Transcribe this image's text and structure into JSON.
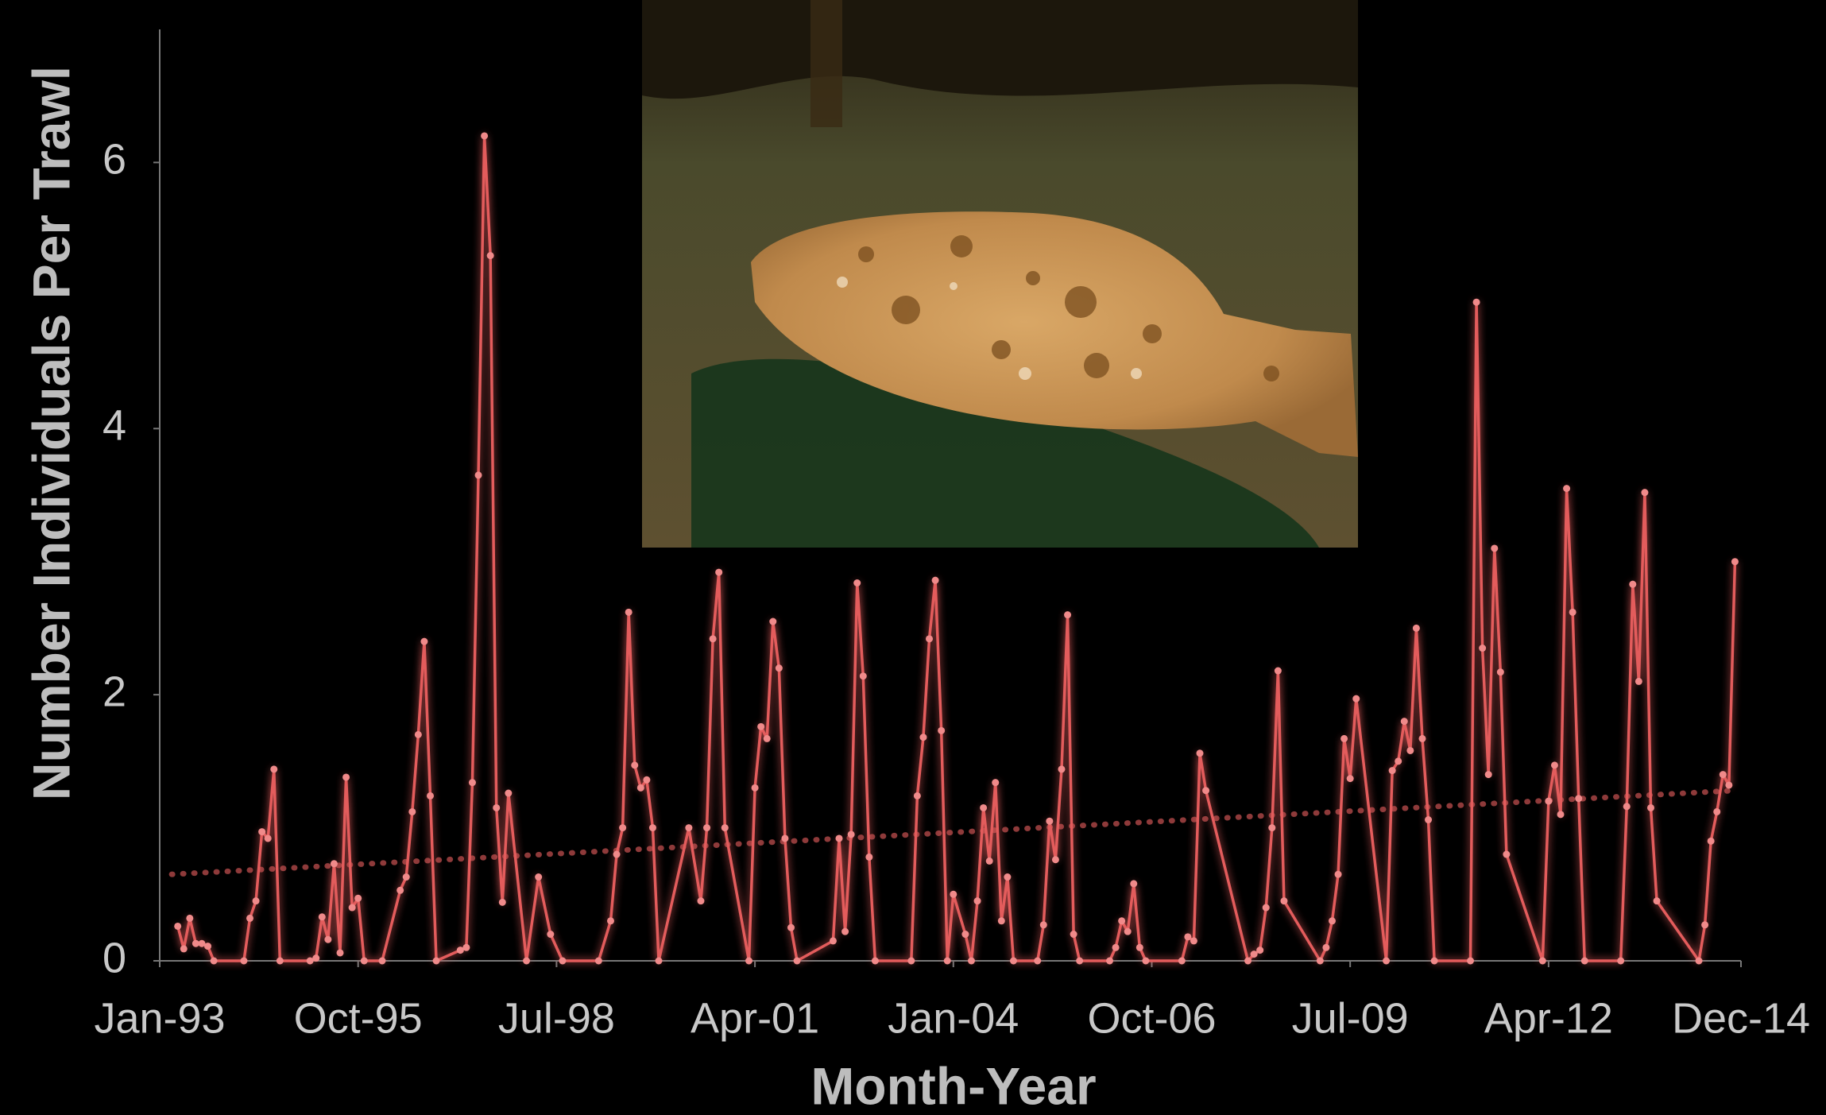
{
  "chart_data": {
    "type": "line",
    "x_label": "Month-Year",
    "y_label": "Number Individuals Per Trawl",
    "xlim": [
      "1993-01",
      "2014-12"
    ],
    "xticks": [
      {
        "value": "1993-01",
        "label": "Jan-93"
      },
      {
        "value": "1995-10",
        "label": "Oct-95"
      },
      {
        "value": "1998-07",
        "label": "Jul-98"
      },
      {
        "value": "2001-04",
        "label": "Apr-01"
      },
      {
        "value": "2004-01",
        "label": "Jan-04"
      },
      {
        "value": "2006-10",
        "label": "Oct-06"
      },
      {
        "value": "2009-07",
        "label": "Jul-09"
      },
      {
        "value": "2012-04",
        "label": "Apr-12"
      },
      {
        "value": "2014-12",
        "label": "Dec-14"
      }
    ],
    "ylim": [
      0,
      7
    ],
    "yticks": [
      0,
      2,
      4,
      6
    ],
    "color": "#e35b5b",
    "x": [
      "1993-04",
      "1993-05",
      "1993-06",
      "1993-07",
      "1993-08",
      "1993-09",
      "1993-10",
      "1994-03",
      "1994-04",
      "1994-05",
      "1994-06",
      "1994-07",
      "1994-08",
      "1994-09",
      "1995-02",
      "1995-03",
      "1995-04",
      "1995-05",
      "1995-06",
      "1995-07",
      "1995-08",
      "1995-09",
      "1995-10",
      "1995-11",
      "1996-02",
      "1996-05",
      "1996-06",
      "1996-07",
      "1996-08",
      "1996-09",
      "1996-10",
      "1996-11",
      "1997-03",
      "1997-04",
      "1997-05",
      "1997-06",
      "1997-07",
      "1997-08",
      "1997-09",
      "1997-10",
      "1997-11",
      "1998-02",
      "1998-04",
      "1998-06",
      "1998-08",
      "1999-02",
      "1999-04",
      "1999-05",
      "1999-06",
      "1999-07",
      "1999-08",
      "1999-09",
      "1999-10",
      "1999-11",
      "1999-12",
      "2000-05",
      "2000-07",
      "2000-08",
      "2000-09",
      "2000-10",
      "2000-11",
      "2001-03",
      "2001-04",
      "2001-05",
      "2001-06",
      "2001-07",
      "2001-08",
      "2001-09",
      "2001-10",
      "2001-11",
      "2002-05",
      "2002-06",
      "2002-07",
      "2002-08",
      "2002-09",
      "2002-10",
      "2002-11",
      "2002-12",
      "2003-06",
      "2003-07",
      "2003-08",
      "2003-09",
      "2003-10",
      "2003-11",
      "2003-12",
      "2004-01",
      "2004-03",
      "2004-04",
      "2004-05",
      "2004-06",
      "2004-07",
      "2004-08",
      "2004-09",
      "2004-10",
      "2004-11",
      "2005-03",
      "2005-04",
      "2005-05",
      "2005-06",
      "2005-07",
      "2005-08",
      "2005-09",
      "2005-10",
      "2006-03",
      "2006-04",
      "2006-05",
      "2006-06",
      "2006-07",
      "2006-08",
      "2006-09",
      "2007-03",
      "2007-04",
      "2007-05",
      "2007-06",
      "2007-07",
      "2008-02",
      "2008-03",
      "2008-04",
      "2008-05",
      "2008-06",
      "2008-07",
      "2008-08",
      "2009-02",
      "2009-03",
      "2009-04",
      "2009-05",
      "2009-06",
      "2009-07",
      "2009-08",
      "2010-01",
      "2010-02",
      "2010-03",
      "2010-04",
      "2010-05",
      "2010-06",
      "2010-07",
      "2010-08",
      "2010-09",
      "2011-03",
      "2011-04",
      "2011-05",
      "2011-06",
      "2011-07",
      "2011-08",
      "2011-09",
      "2012-03",
      "2012-04",
      "2012-05",
      "2012-06",
      "2012-07",
      "2012-08",
      "2012-09",
      "2012-10",
      "2013-04",
      "2013-05",
      "2013-06",
      "2013-07",
      "2013-08",
      "2013-09",
      "2013-10",
      "2014-05",
      "2014-06",
      "2014-07",
      "2014-08",
      "2014-09",
      "2014-10",
      "2014-11"
    ],
    "values": [
      0.26,
      0.09,
      0.32,
      0.13,
      0.13,
      0.11,
      0,
      0,
      0.32,
      0.45,
      0.97,
      0.92,
      1.44,
      0,
      0,
      0.02,
      0.33,
      0.16,
      0.73,
      0.06,
      1.38,
      0.4,
      0.47,
      0,
      0,
      0.53,
      0.63,
      1.12,
      1.7,
      2.4,
      1.24,
      0,
      0.08,
      0.1,
      1.34,
      3.65,
      6.2,
      5.3,
      1.15,
      0.44,
      1.26,
      0,
      0.63,
      0.2,
      0,
      0,
      0.3,
      0.8,
      1.0,
      2.62,
      1.47,
      1.3,
      1.36,
      1.0,
      0,
      1.0,
      0.45,
      1.0,
      2.42,
      2.92,
      1.0,
      0,
      1.3,
      1.76,
      1.67,
      2.55,
      2.2,
      0.92,
      0.25,
      0,
      0.15,
      0.92,
      0.22,
      0.95,
      2.84,
      2.14,
      0.78,
      0,
      0,
      1.24,
      1.68,
      2.42,
      2.86,
      1.73,
      0,
      0.5,
      0.2,
      0,
      0.45,
      1.15,
      0.75,
      1.34,
      0.3,
      0.63,
      0,
      0,
      0.27,
      1.05,
      0.76,
      1.44,
      2.6,
      0.2,
      0,
      0,
      0.1,
      0.3,
      0.22,
      0.58,
      0.1,
      0,
      0,
      0.18,
      0.15,
      1.56,
      1.28,
      0,
      0.05,
      0.08,
      0.4,
      1.0,
      2.18,
      0.45,
      0,
      0.1,
      0.3,
      0.65,
      1.67,
      1.37,
      1.97,
      0,
      1.43,
      1.5,
      1.8,
      1.58,
      2.5,
      1.67,
      1.06,
      0,
      0,
      4.95,
      2.35,
      1.4,
      3.1,
      2.17,
      0.8,
      0,
      1.2,
      1.47,
      1.1,
      3.55,
      2.62,
      1.22,
      0,
      0,
      1.16,
      2.83,
      2.1,
      3.52,
      1.15,
      0.45,
      0,
      0.27,
      0.9,
      1.12,
      1.4,
      1.32,
      3.0
    ],
    "trend": {
      "x": [
        "1993-03",
        "2014-11"
      ],
      "values": [
        0.65,
        1.28
      ],
      "color": "#8e3a3a",
      "dotted": true
    }
  }
}
